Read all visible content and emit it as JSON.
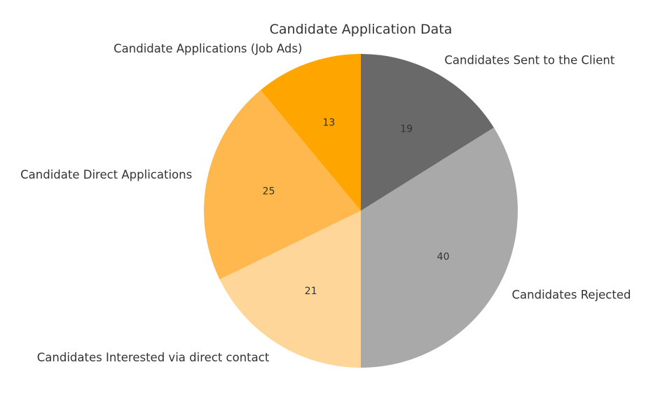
{
  "chart_data": {
    "type": "pie",
    "title": "Candidate Application Data",
    "start_angle_deg": 90,
    "direction": "clockwise",
    "slices": [
      {
        "label": "Candidates Sent to the Client",
        "value": 19,
        "color": "#696969"
      },
      {
        "label": "Candidates Rejected",
        "value": 40,
        "color": "#A9A9A9"
      },
      {
        "label": "Candidates Interested via direct contact",
        "value": 21,
        "color": "#FFD699"
      },
      {
        "label": "Candidate Direct Applications",
        "value": 25,
        "color": "#FFB84D"
      },
      {
        "label": "Candidate Applications (Job Ads)",
        "value": 13,
        "color": "#FFA500"
      }
    ]
  }
}
